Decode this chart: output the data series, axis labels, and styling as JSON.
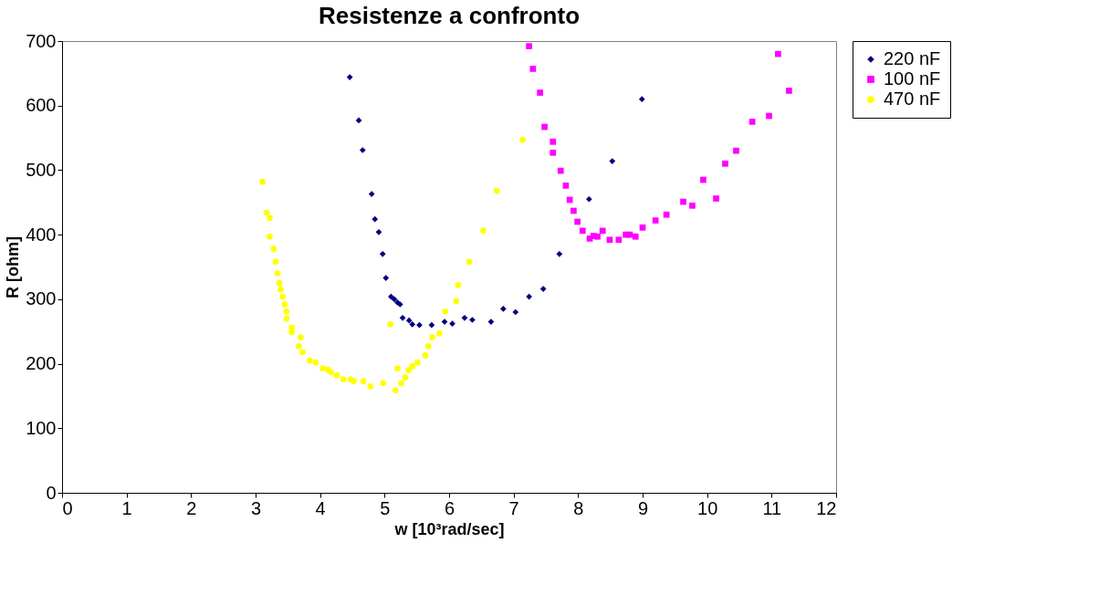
{
  "chart_data": {
    "type": "scatter",
    "title": "Resistenze a confronto",
    "xlabel": "w [10³rad/sec]",
    "ylabel": "R [ohm]",
    "xlim": [
      0,
      12
    ],
    "xticks": [
      0,
      1,
      2,
      3,
      4,
      5,
      6,
      7,
      8,
      9,
      10,
      11,
      12
    ],
    "ylim": [
      0,
      700
    ],
    "yticks": [
      0,
      100,
      200,
      300,
      400,
      500,
      600,
      700
    ],
    "grid": false,
    "legend": "right",
    "series": [
      {
        "name": "220 nF",
        "color": "#000080",
        "marker": "diamond",
        "x": [
          4.46,
          4.6,
          4.66,
          4.8,
          4.85,
          4.91,
          4.97,
          5.02,
          5.1,
          5.15,
          5.2,
          5.24,
          5.28,
          5.38,
          5.43,
          5.54,
          5.73,
          5.93,
          6.05,
          6.24,
          6.36,
          6.65,
          6.84,
          7.03,
          7.24,
          7.46,
          7.71,
          8.17,
          8.53,
          8.99
        ],
        "values": [
          644,
          577,
          531,
          463,
          424,
          404,
          370,
          333,
          304,
          300,
          295,
          292,
          271,
          267,
          261,
          260,
          260,
          265,
          262,
          271,
          268,
          265,
          285,
          280,
          304,
          316,
          370,
          455,
          514,
          610
        ]
      },
      {
        "name": "100 nF",
        "color": "#ff00ff",
        "marker": "square",
        "x": [
          7.24,
          7.3,
          7.41,
          7.48,
          7.61,
          7.61,
          7.73,
          7.81,
          7.87,
          7.93,
          7.99,
          8.07,
          8.18,
          8.24,
          8.3,
          8.38,
          8.49,
          8.63,
          8.74,
          8.8,
          8.89,
          9.0,
          9.2,
          9.37,
          9.63,
          9.77,
          9.94,
          10.14,
          10.28,
          10.45,
          10.7,
          10.96,
          11.1,
          11.27
        ],
        "values": [
          692,
          657,
          620,
          567,
          544,
          527,
          499,
          476,
          454,
          437,
          420,
          406,
          394,
          398,
          397,
          406,
          392,
          392,
          400,
          400,
          397,
          411,
          422,
          431,
          451,
          445,
          485,
          456,
          510,
          530,
          575,
          584,
          680,
          623
        ]
      },
      {
        "name": "470 nF",
        "color": "#ffff00",
        "marker": "circle",
        "x": [
          3.11,
          3.17,
          3.22,
          3.22,
          3.28,
          3.31,
          3.34,
          3.37,
          3.39,
          3.42,
          3.45,
          3.48,
          3.48,
          3.56,
          3.56,
          3.7,
          3.67,
          3.73,
          3.84,
          3.93,
          4.04,
          4.12,
          4.17,
          4.26,
          4.36,
          4.47,
          4.52,
          4.67,
          4.78,
          4.98,
          5.09,
          5.17,
          5.2,
          5.26,
          5.32,
          5.37,
          5.43,
          5.51,
          5.63,
          5.68,
          5.74,
          5.85,
          5.94,
          6.11,
          6.14,
          6.31,
          6.53,
          6.74,
          7.14
        ],
        "values": [
          482,
          434,
          426,
          397,
          378,
          358,
          340,
          325,
          315,
          304,
          292,
          281,
          270,
          256,
          249,
          241,
          227,
          218,
          205,
          202,
          193,
          191,
          187,
          182,
          176,
          176,
          173,
          173,
          165,
          170,
          261,
          159,
          193,
          170,
          179,
          190,
          196,
          202,
          213,
          227,
          241,
          247,
          281,
          297,
          322,
          358,
          406,
          468,
          547
        ]
      }
    ]
  }
}
